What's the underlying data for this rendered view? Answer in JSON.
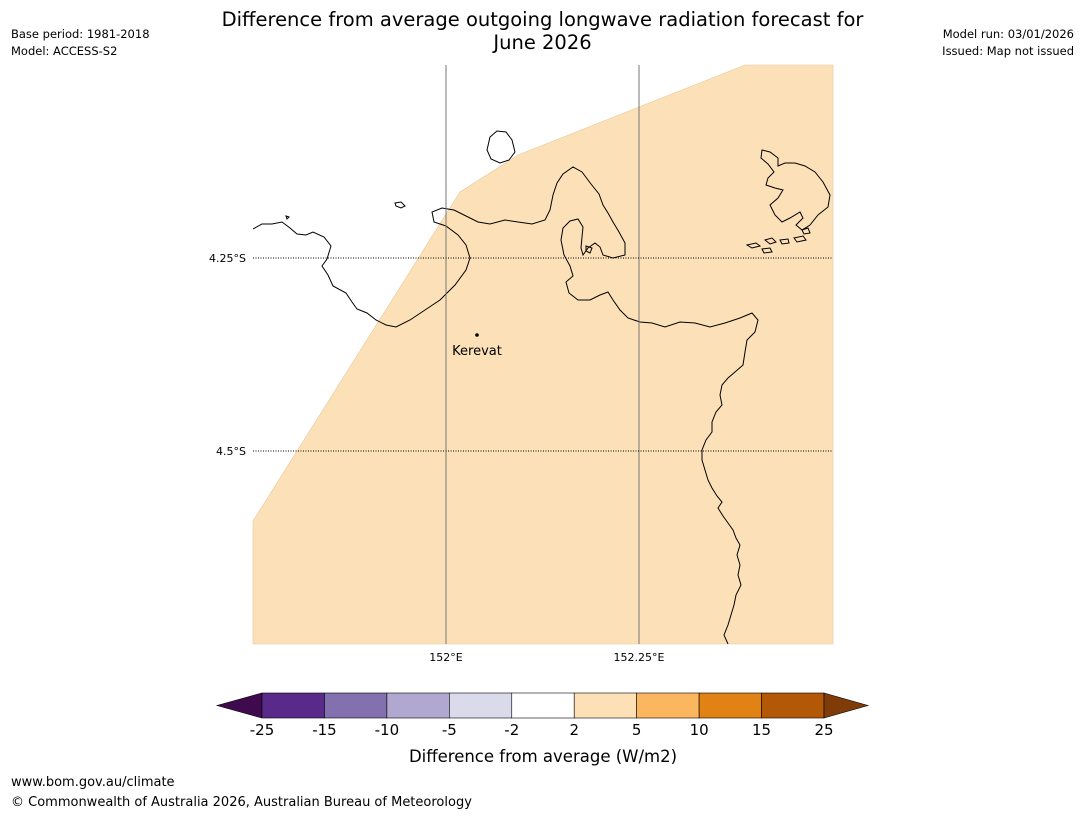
{
  "header": {
    "title_line1": "Difference from average outgoing longwave radiation forecast for",
    "title_line2": "June 2026",
    "base_period": "Base period: 1981-2018",
    "model": "Model: ACCESS-S2",
    "model_run": "Model run: 03/01/2026",
    "issued": "Issued: Map not issued"
  },
  "map": {
    "lat_labels": [
      "4.25°S",
      "4.5°S"
    ],
    "lon_labels": [
      "152°E",
      "152.25°E"
    ],
    "town": {
      "name": "Kerevat"
    },
    "fill_color": "#fce0b7",
    "coast_color": "#000000"
  },
  "legend": {
    "title": "Difference from average (W/m2)",
    "tick_labels": [
      "-25",
      "-15",
      "-10",
      "-5",
      "-2",
      "2",
      "5",
      "10",
      "15",
      "25"
    ],
    "colors": [
      "#3f0a4e",
      "#5a2a8a",
      "#8370ae",
      "#b1a8d2",
      "#dadaeb",
      "#ffffff",
      "#fde0b6",
      "#fbb660",
      "#e08214",
      "#b35806",
      "#7f3b08"
    ]
  },
  "footer": {
    "url": "www.bom.gov.au/climate",
    "copyright": "© Commonwealth of Australia 2026, Australian Bureau of Meteorology"
  }
}
